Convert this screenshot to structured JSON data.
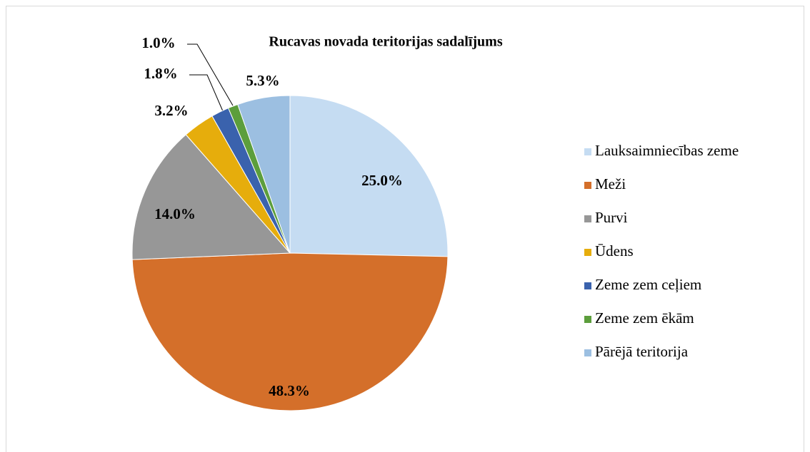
{
  "chart_data": {
    "type": "pie",
    "title": "Rucavas novada teritorijas sadalījums",
    "categories": [
      "Lauksaimniecības zeme",
      "Meži",
      "Purvi",
      "Ūdens",
      "Zeme zem ceļiem",
      "Zeme zem ēkām",
      "Pārējā teritorija"
    ],
    "values": [
      25.0,
      48.3,
      14.0,
      3.2,
      1.8,
      1.0,
      5.3
    ],
    "value_labels": [
      "25.0%",
      "48.3%",
      "14.0%",
      "3.2%",
      "1.8%",
      "1.0%",
      "5.3%"
    ],
    "colors": [
      "#c5dcf2",
      "#d46f2a",
      "#979797",
      "#e6ad0c",
      "#3a62ad",
      "#5c9e3c",
      "#9cbfe1"
    ],
    "legend": "right"
  }
}
